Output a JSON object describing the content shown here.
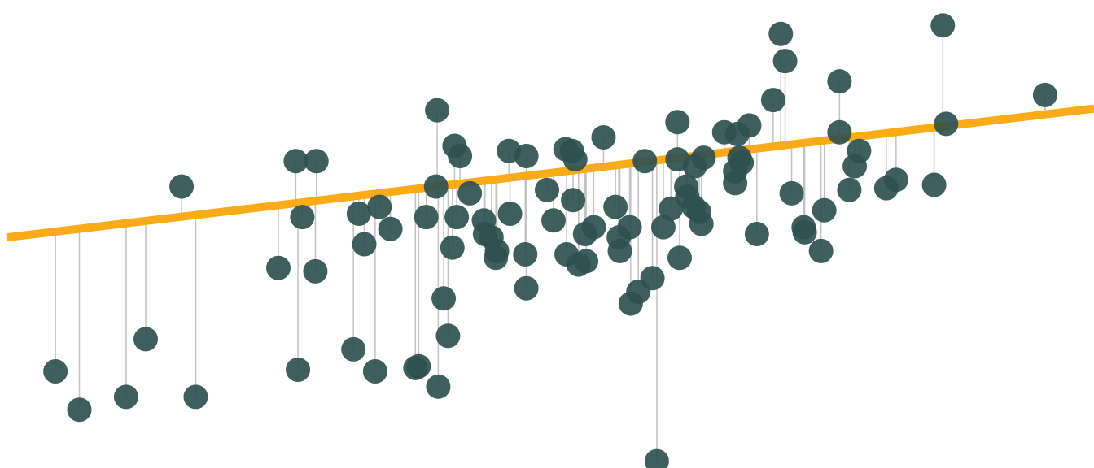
{
  "chart_data": {
    "type": "scatter",
    "title": "",
    "xlabel": "",
    "ylabel": "",
    "xlim": [
      0,
      100
    ],
    "ylim": [
      -18,
      120
    ],
    "grid": false,
    "legend": "none",
    "colors": {
      "points": "#2f5050",
      "regression": "#fbab18",
      "residual": "#c2c2c2"
    },
    "regression": {
      "intercept": 50,
      "slope": 0.38
    },
    "points": [
      [
        4.5,
        10.5
      ],
      [
        6.7,
        -0.8
      ],
      [
        11.0,
        3.0
      ],
      [
        12.8,
        20.0
      ],
      [
        16.1,
        65.0
      ],
      [
        17.4,
        3.0
      ],
      [
        25.0,
        41.0
      ],
      [
        26.6,
        72.5
      ],
      [
        26.8,
        11.0
      ],
      [
        27.2,
        56.0
      ],
      [
        28.4,
        40.0
      ],
      [
        28.5,
        72.5
      ],
      [
        31.9,
        17.0
      ],
      [
        32.4,
        57.0
      ],
      [
        32.9,
        48.0
      ],
      [
        33.9,
        10.5
      ],
      [
        34.3,
        59.0
      ],
      [
        35.3,
        52.5
      ],
      [
        37.6,
        11.5
      ],
      [
        37.9,
        12.0
      ],
      [
        38.6,
        56.0
      ],
      [
        39.5,
        65.0
      ],
      [
        39.6,
        87.5
      ],
      [
        39.7,
        6.0
      ],
      [
        40.2,
        32.0
      ],
      [
        40.6,
        21.0
      ],
      [
        41.0,
        47.0
      ],
      [
        41.2,
        77.0
      ],
      [
        41.4,
        56.0
      ],
      [
        41.7,
        74.0
      ],
      [
        42.6,
        63.0
      ],
      [
        43.9,
        55.0
      ],
      [
        44.0,
        51.0
      ],
      [
        44.6,
        50.0
      ],
      [
        45.0,
        44.0
      ],
      [
        45.1,
        46.0
      ],
      [
        46.2,
        75.5
      ],
      [
        46.3,
        57.0
      ],
      [
        47.7,
        45.0
      ],
      [
        47.8,
        35.0
      ],
      [
        47.8,
        74.0
      ],
      [
        49.7,
        64.0
      ],
      [
        50.3,
        55.0
      ],
      [
        51.4,
        76.0
      ],
      [
        51.5,
        45.0
      ],
      [
        52.0,
        75.5
      ],
      [
        52.1,
        61.0
      ],
      [
        52.3,
        73.0
      ],
      [
        52.6,
        42.0
      ],
      [
        53.2,
        51.0
      ],
      [
        53.3,
        43.0
      ],
      [
        54.0,
        53.0
      ],
      [
        54.9,
        79.5
      ],
      [
        56.0,
        59.0
      ],
      [
        56.3,
        50.0
      ],
      [
        56.4,
        46.0
      ],
      [
        57.3,
        53.0
      ],
      [
        57.4,
        30.5
      ],
      [
        58.1,
        34.0
      ],
      [
        58.7,
        72.5
      ],
      [
        59.4,
        38.0
      ],
      [
        59.8,
        -16.0
      ],
      [
        60.4,
        53.0
      ],
      [
        61.1,
        58.5
      ],
      [
        61.7,
        84.0
      ],
      [
        61.7,
        73.0
      ],
      [
        61.9,
        44.0
      ],
      [
        62.5,
        65.0
      ],
      [
        62.6,
        62.0
      ],
      [
        63.2,
        59.0
      ],
      [
        63.3,
        71.0
      ],
      [
        63.7,
        57.5
      ],
      [
        63.9,
        54.0
      ],
      [
        64.1,
        73.5
      ],
      [
        66.0,
        81.0
      ],
      [
        67.0,
        69.5
      ],
      [
        67.0,
        66.0
      ],
      [
        67.2,
        80.5
      ],
      [
        67.4,
        73.5
      ],
      [
        67.6,
        72.0
      ],
      [
        68.3,
        83.0
      ],
      [
        69.0,
        51.0
      ],
      [
        70.5,
        90.5
      ],
      [
        71.2,
        110.0
      ],
      [
        71.6,
        102.0
      ],
      [
        72.2,
        63.0
      ],
      [
        73.3,
        53.0
      ],
      [
        73.4,
        51.5
      ],
      [
        74.9,
        46.0
      ],
      [
        75.2,
        58.0
      ],
      [
        76.6,
        96.0
      ],
      [
        76.6,
        81.0
      ],
      [
        77.5,
        64.0
      ],
      [
        78.0,
        71.0
      ],
      [
        78.4,
        75.5
      ],
      [
        80.9,
        64.5
      ],
      [
        81.8,
        67.0
      ],
      [
        85.3,
        65.5
      ],
      [
        86.1,
        112.5
      ],
      [
        86.4,
        83.5
      ],
      [
        95.5,
        92.0
      ]
    ]
  }
}
